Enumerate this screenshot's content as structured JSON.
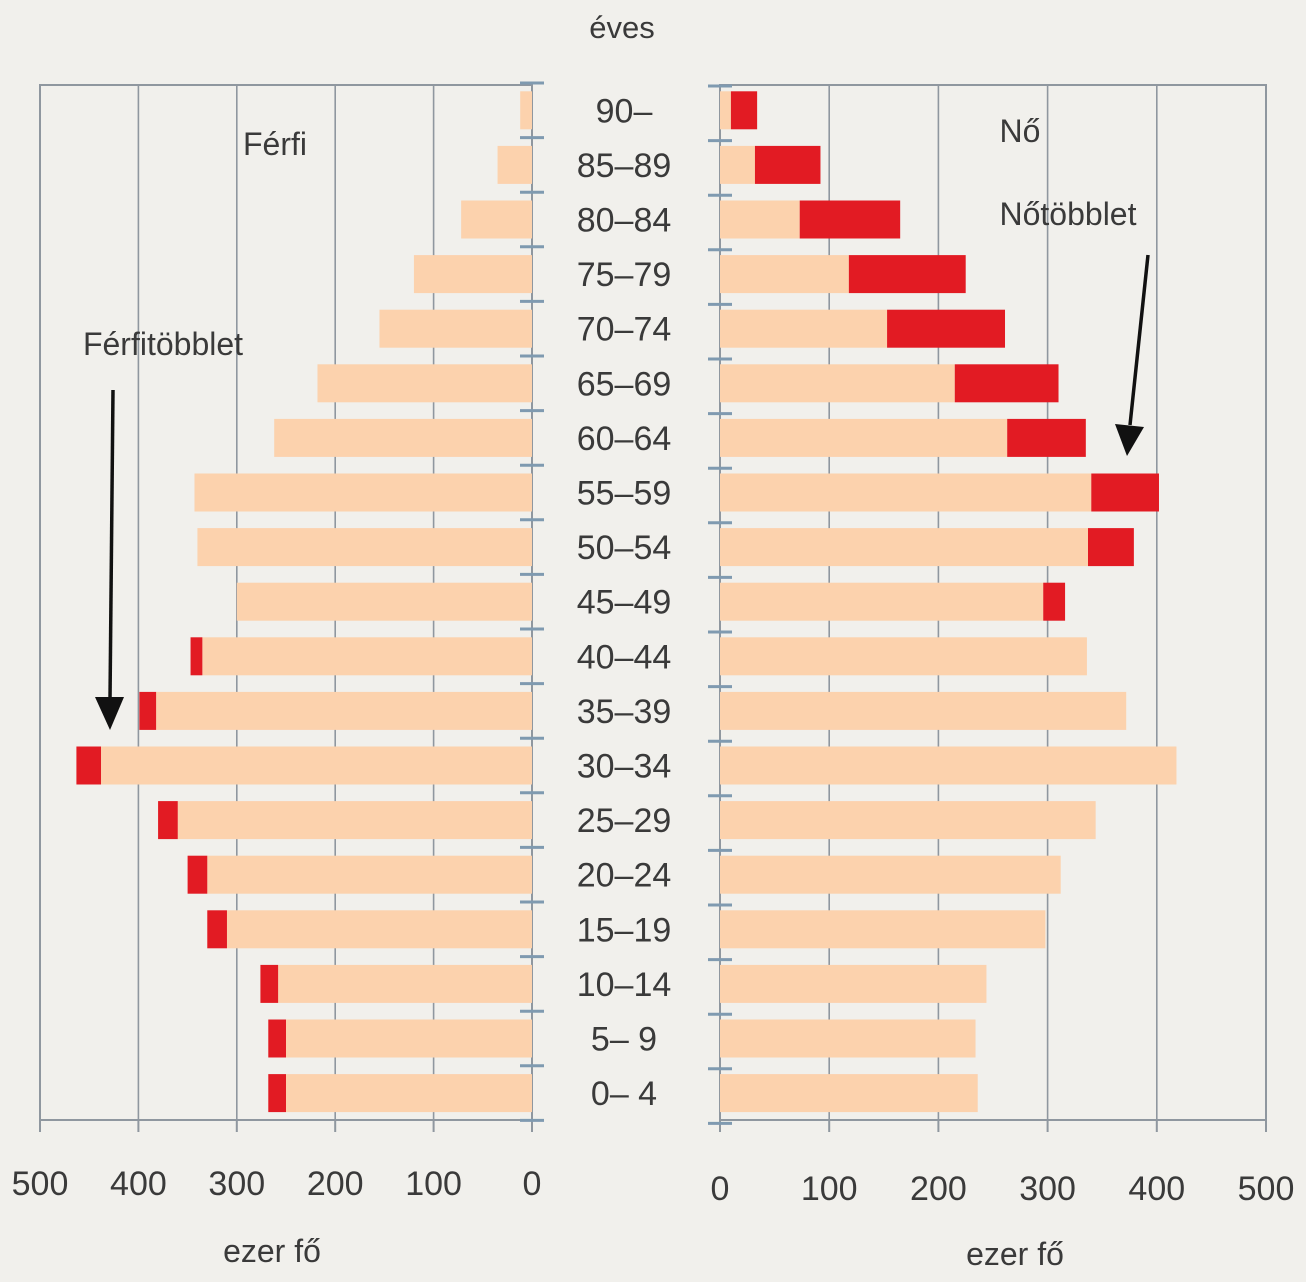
{
  "chart_data": {
    "type": "bar",
    "subtype": "population-pyramid",
    "top_label": "éves",
    "categories": [
      "90–",
      "85–89",
      "80–84",
      "75–79",
      "70–74",
      "65–69",
      "60–64",
      "55–59",
      "50–54",
      "45–49",
      "40–44",
      "35–39",
      "30–34",
      "25–29",
      "20–24",
      "15–19",
      "10–14",
      "5– 9",
      "0– 4"
    ],
    "xlim": [
      0,
      500
    ],
    "ticks": [
      "0",
      "100",
      "200",
      "300",
      "400",
      "500"
    ],
    "xlabel": "ezer fő",
    "grid": true,
    "colors": {
      "base": "#fcd2ad",
      "surplus": "#e21b23",
      "grid": "#8f979f",
      "axis": "#7f9ab0"
    },
    "panels": [
      {
        "side": "left",
        "label": "Férfi",
        "annotation": "Férfitöbblet",
        "series": [
          {
            "name": "base",
            "values": [
              12,
              35,
              72,
              120,
              155,
              218,
              262,
              343,
              340,
              300,
              335,
              382,
              438,
              360,
              330,
              310,
              258,
              250,
              250
            ]
          },
          {
            "name": "surplus",
            "values": [
              0,
              0,
              0,
              0,
              0,
              0,
              0,
              0,
              0,
              0,
              12,
              17,
              25,
              20,
              20,
              20,
              18,
              18,
              18
            ]
          }
        ]
      },
      {
        "side": "right",
        "label": "Nő",
        "annotation": "Nőtöbblet",
        "series": [
          {
            "name": "base",
            "values": [
              10,
              32,
              73,
              118,
              153,
              215,
              263,
              340,
              337,
              296,
              336,
              372,
              418,
              344,
              312,
              298,
              244,
              234,
              236
            ]
          },
          {
            "name": "surplus",
            "values": [
              24,
              60,
              92,
              107,
              108,
              95,
              72,
              62,
              42,
              20,
              0,
              0,
              0,
              0,
              0,
              0,
              0,
              0,
              0
            ]
          }
        ]
      }
    ]
  }
}
